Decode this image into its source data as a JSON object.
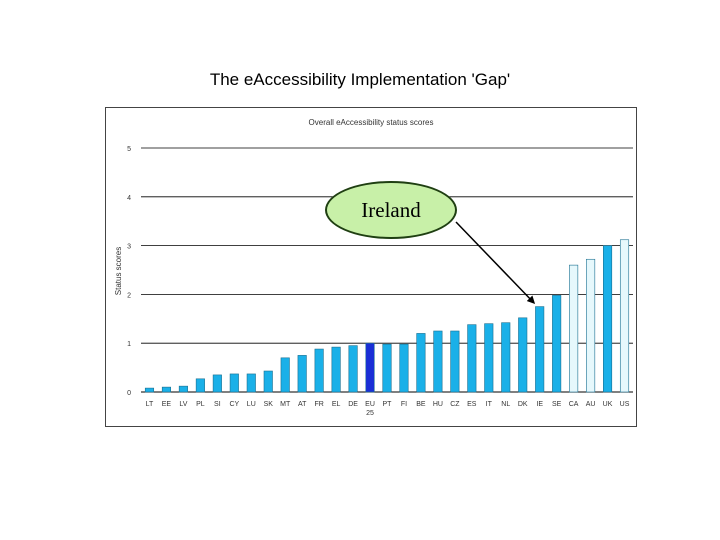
{
  "slide": {
    "title": "The eAccessibility Implementation 'Gap'"
  },
  "callout": {
    "label": "Ireland",
    "target_category": "IE"
  },
  "chart_data": {
    "type": "bar",
    "title": "Overall eAccessibility status scores",
    "xlabel": "",
    "ylabel": "Status scores",
    "ylim": [
      0,
      5
    ],
    "yticks": [
      0,
      1,
      2,
      3,
      4,
      5
    ],
    "grid": true,
    "legend": "none",
    "categories": [
      "LT",
      "EE",
      "LV",
      "PL",
      "SI",
      "CY",
      "LU",
      "SK",
      "MT",
      "AT",
      "FR",
      "EL",
      "DE",
      "EU 25",
      "PT",
      "FI",
      "BE",
      "HU",
      "CZ",
      "ES",
      "IT",
      "NL",
      "DK",
      "IE",
      "SE",
      "CA",
      "AU",
      "UK",
      "US"
    ],
    "values": [
      0.08,
      0.1,
      0.12,
      0.27,
      0.35,
      0.37,
      0.37,
      0.43,
      0.7,
      0.75,
      0.88,
      0.92,
      0.95,
      1.0,
      0.98,
      0.98,
      1.2,
      1.25,
      1.25,
      1.38,
      1.4,
      1.42,
      1.52,
      1.75,
      1.98,
      2.6,
      2.72,
      3.0,
      3.12
    ],
    "colors": {
      "default": "#1ab0e8",
      "eu_average": "#1a2fd6",
      "non_eu": "#e6f8fc",
      "bar_edge": "#1a6f90",
      "grid": "#000000"
    },
    "non_eu_categories": [
      "CA",
      "AU",
      "US"
    ],
    "eu_average_category": "EU 25"
  }
}
